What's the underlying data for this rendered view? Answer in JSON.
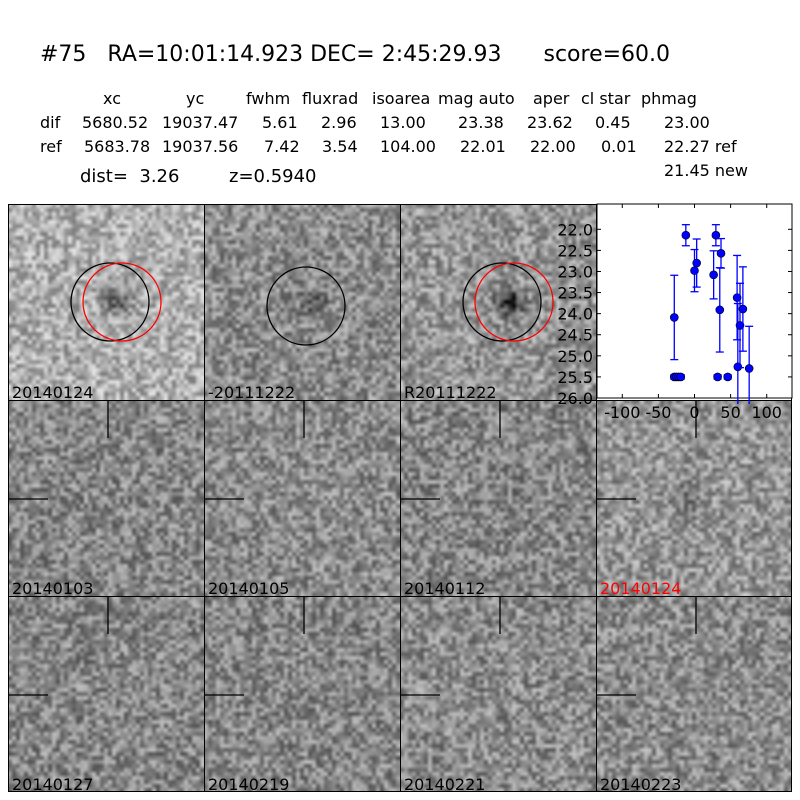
{
  "title": {
    "id": "#75",
    "ra": "RA=10:01:14.923",
    "dec": "DEC= 2:45:29.93",
    "score": "score=60.0"
  },
  "table": {
    "headers": [
      "xc",
      "yc",
      "fwhm",
      "fluxrad",
      "isoarea",
      "mag auto",
      "aper",
      "cl star",
      "phmag"
    ],
    "rows": [
      {
        "label": "dif",
        "values": [
          "5680.52",
          "19037.47",
          "5.61",
          "2.96",
          "13.00",
          "23.38",
          "23.62",
          "0.45",
          "23.00"
        ]
      },
      {
        "label": "ref",
        "values": [
          "5683.78",
          "19037.56",
          "7.42",
          "3.54",
          "104.00",
          "22.01",
          "22.00",
          "0.01",
          "22.27 ref"
        ]
      }
    ],
    "new_phmag": "21.45 new",
    "dist": "dist=  3.26",
    "z": "z=0.5940"
  },
  "stamps": [
    {
      "label": "20140124",
      "label_color": "#000000"
    },
    {
      "label": "-20111222",
      "label_color": "#000000"
    },
    {
      "label": "R20111222",
      "label_color": "#000000"
    },
    {
      "label": "20140103",
      "label_color": "#000000"
    },
    {
      "label": "20140105",
      "label_color": "#000000"
    },
    {
      "label": "20140112",
      "label_color": "#000000"
    },
    {
      "label": "20140124",
      "label_color": "#ff0000"
    },
    {
      "label": "20140127",
      "label_color": "#000000"
    },
    {
      "label": "20140219",
      "label_color": "#000000"
    },
    {
      "label": "20140221",
      "label_color": "#000000"
    },
    {
      "label": "20140223",
      "label_color": "#000000"
    }
  ],
  "chart_data": {
    "type": "scatter",
    "title": "",
    "xlabel": "",
    "ylabel": "",
    "xlim": [
      -135,
      135
    ],
    "ylim": [
      26.0,
      21.4
    ],
    "y_inverted": true,
    "xticks": [
      "-100",
      "-50",
      "0",
      "50",
      "100"
    ],
    "xtick_values": [
      -100,
      -50,
      0,
      50,
      100
    ],
    "yticks": [
      "22.0",
      "22.5",
      "23.0",
      "23.5",
      "24.0",
      "24.5",
      "25.0",
      "25.5",
      "26.0"
    ],
    "ytick_values": [
      22.0,
      22.5,
      23.0,
      23.5,
      24.0,
      24.5,
      25.0,
      25.5,
      26.0
    ],
    "color": "#0000ff",
    "grid": false,
    "points": [
      {
        "x": -28,
        "y": 24.09,
        "yerr": 1.0
      },
      {
        "x": -12,
        "y": 22.14,
        "yerr": 0.25
      },
      {
        "x": 0,
        "y": 22.98,
        "yerr": 0.5
      },
      {
        "x": 3,
        "y": 22.8,
        "yerr": 0.57
      },
      {
        "x": 26.5,
        "y": 23.08,
        "yerr": 0.57
      },
      {
        "x": 29.6,
        "y": 22.14,
        "yerr": 0.25
      },
      {
        "x": 36.7,
        "y": 22.57,
        "yerr": 0.35
      },
      {
        "x": 35,
        "y": 23.91,
        "yerr": 1.0
      },
      {
        "x": 59,
        "y": 23.62,
        "yerr": 1.0
      },
      {
        "x": 60,
        "y": 25.26,
        "yerr": 1.5
      },
      {
        "x": 63,
        "y": 24.28,
        "yerr": 1.0
      },
      {
        "x": 67,
        "y": 23.89,
        "yerr": 1.0
      },
      {
        "x": 75.7,
        "y": 25.3,
        "yerr": 1.0
      },
      {
        "x": -28,
        "y": 25.5,
        "yerr": 0.05
      },
      {
        "x": -25,
        "y": 25.5,
        "yerr": 0.05
      },
      {
        "x": -22,
        "y": 25.5,
        "yerr": 0.05
      },
      {
        "x": -19,
        "y": 25.5,
        "yerr": 0.05
      },
      {
        "x": 32,
        "y": 25.5,
        "yerr": 0.05
      },
      {
        "x": 46,
        "y": 25.5,
        "yerr": 0.05
      }
    ]
  }
}
